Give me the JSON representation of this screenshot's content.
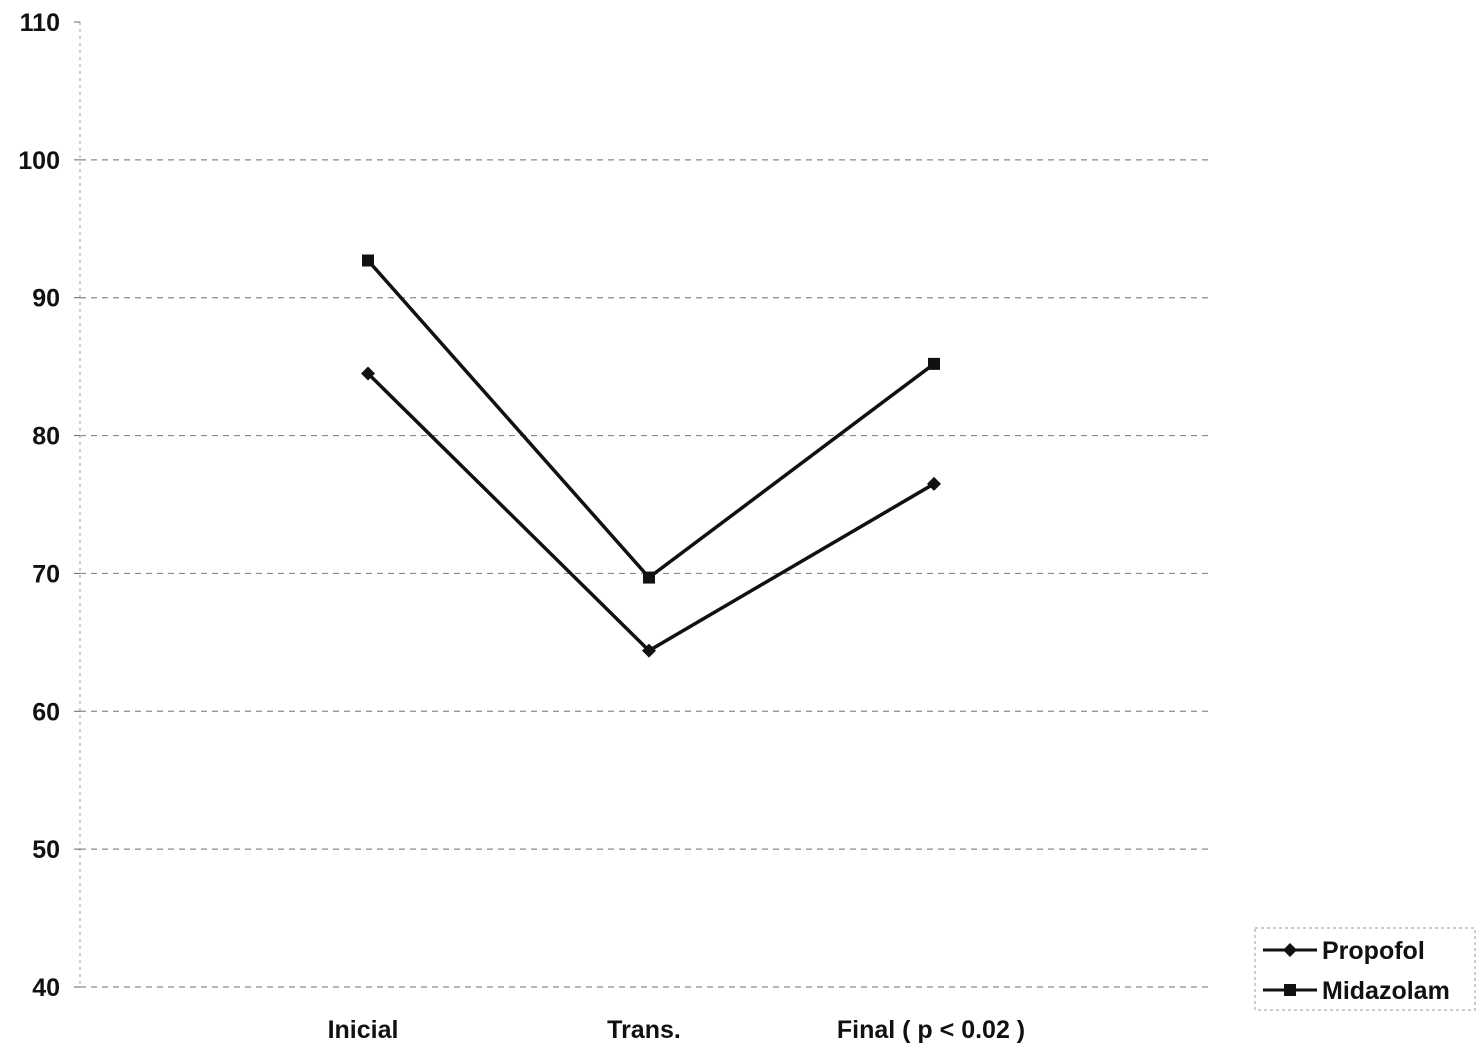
{
  "chart_data": {
    "type": "line",
    "categories": [
      "Inicial",
      "Trans.",
      "Final ( p < 0.02 )"
    ],
    "series": [
      {
        "name": "Propofol",
        "values": [
          84.5,
          64.4,
          76.5
        ],
        "marker": "diamond"
      },
      {
        "name": "Midazolam",
        "values": [
          92.7,
          69.7,
          85.2
        ],
        "marker": "square"
      }
    ],
    "ylim": [
      40,
      110
    ],
    "yticks": [
      40,
      50,
      60,
      70,
      80,
      90,
      100,
      110
    ],
    "title": "",
    "xlabel": "",
    "ylabel": "",
    "grid": true,
    "legend_position": "bottom-right",
    "line_color": "#111111"
  }
}
